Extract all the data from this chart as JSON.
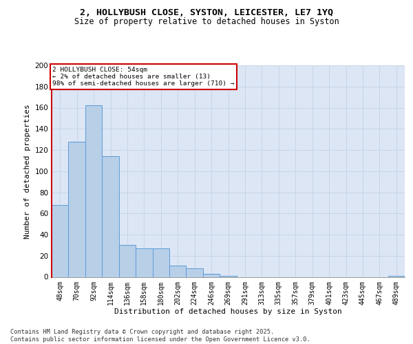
{
  "title_line1": "2, HOLLYBUSH CLOSE, SYSTON, LEICESTER, LE7 1YQ",
  "title_line2": "Size of property relative to detached houses in Syston",
  "xlabel": "Distribution of detached houses by size in Syston",
  "ylabel": "Number of detached properties",
  "categories": [
    "48sqm",
    "70sqm",
    "92sqm",
    "114sqm",
    "136sqm",
    "158sqm",
    "180sqm",
    "202sqm",
    "224sqm",
    "246sqm",
    "269sqm",
    "291sqm",
    "313sqm",
    "335sqm",
    "357sqm",
    "379sqm",
    "401sqm",
    "423sqm",
    "445sqm",
    "467sqm",
    "489sqm"
  ],
  "values": [
    68,
    128,
    162,
    114,
    30,
    27,
    27,
    11,
    8,
    3,
    1,
    0,
    0,
    0,
    0,
    0,
    0,
    0,
    0,
    0,
    1
  ],
  "bar_color": "#b8cfe8",
  "bar_edge_color": "#5b9bd5",
  "grid_color": "#c8d4e8",
  "background_color": "#dce6f5",
  "annotation_text": "2 HOLLYBUSH CLOSE: 54sqm\n← 2% of detached houses are smaller (13)\n98% of semi-detached houses are larger (710) →",
  "annotation_box_color": "#ffffff",
  "annotation_box_edge": "#cc0000",
  "ylim_max": 200,
  "yticks": [
    0,
    20,
    40,
    60,
    80,
    100,
    120,
    140,
    160,
    180,
    200
  ],
  "footer_text": "Contains HM Land Registry data © Crown copyright and database right 2025.\nContains public sector information licensed under the Open Government Licence v3.0."
}
